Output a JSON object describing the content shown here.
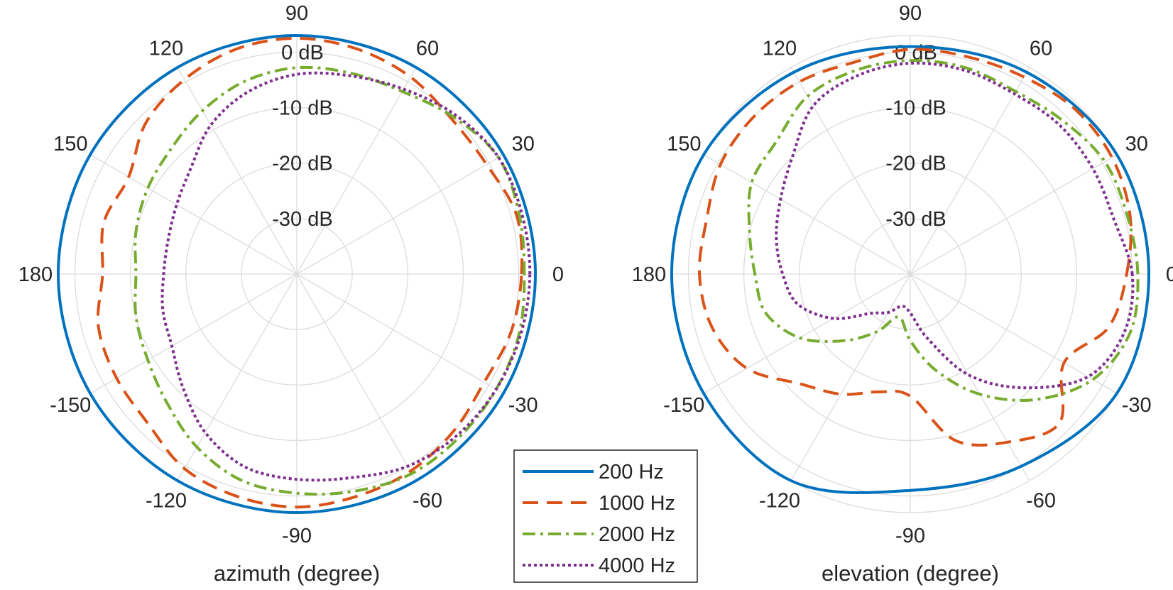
{
  "chart_data": [
    {
      "type": "polar-line",
      "name": "azimuth",
      "xlabel": "azimuth (degree)",
      "angle_unit": "degree",
      "angle_ticks": [
        0,
        30,
        60,
        90,
        120,
        150,
        180,
        -150,
        -120,
        -90,
        -60,
        -30
      ],
      "rlim_db": [
        -40,
        3
      ],
      "r_ticks": [
        {
          "value": 0,
          "label": "0 dB"
        },
        {
          "value": -10,
          "label": "-10 dB"
        },
        {
          "value": -20,
          "label": "-20 dB"
        },
        {
          "value": -30,
          "label": "-30 dB"
        }
      ],
      "series": [
        {
          "name": "200 Hz",
          "color": "#0072BD",
          "style": "solid",
          "points": [
            [
              0,
              3
            ],
            [
              30,
              3
            ],
            [
              60,
              3
            ],
            [
              90,
              3
            ],
            [
              120,
              3
            ],
            [
              150,
              3
            ],
            [
              180,
              3
            ],
            [
              -150,
              3
            ],
            [
              -120,
              3
            ],
            [
              -90,
              3
            ],
            [
              -60,
              3
            ],
            [
              -30,
              3
            ],
            [
              0,
              3
            ]
          ]
        },
        {
          "name": "1000 Hz",
          "color": "#D95319",
          "style": "dashed",
          "points": [
            [
              0,
              0.5
            ],
            [
              15,
              1
            ],
            [
              30,
              -0.5
            ],
            [
              45,
              -0.5
            ],
            [
              60,
              1
            ],
            [
              75,
              2
            ],
            [
              90,
              2.5
            ],
            [
              105,
              2
            ],
            [
              120,
              0.5
            ],
            [
              135,
              -1.5
            ],
            [
              150,
              -5
            ],
            [
              165,
              -4
            ],
            [
              180,
              -5
            ],
            [
              195,
              -3
            ],
            [
              210,
              -2.5
            ],
            [
              225,
              -2
            ],
            [
              240,
              0.5
            ],
            [
              255,
              1.5
            ],
            [
              270,
              2
            ],
            [
              285,
              1.5
            ],
            [
              300,
              1
            ],
            [
              315,
              0
            ],
            [
              330,
              -1
            ],
            [
              345,
              0
            ],
            [
              360,
              0.5
            ]
          ]
        },
        {
          "name": "2000 Hz",
          "color": "#77AC30",
          "style": "dashdot",
          "points": [
            [
              0,
              1
            ],
            [
              15,
              1.5
            ],
            [
              30,
              2
            ],
            [
              45,
              0
            ],
            [
              60,
              -2
            ],
            [
              75,
              -2.5
            ],
            [
              90,
              -2.8
            ],
            [
              105,
              -4
            ],
            [
              120,
              -6
            ],
            [
              135,
              -8
            ],
            [
              150,
              -9
            ],
            [
              165,
              -10
            ],
            [
              180,
              -11
            ],
            [
              195,
              -10
            ],
            [
              210,
              -9
            ],
            [
              225,
              -7
            ],
            [
              240,
              -4
            ],
            [
              255,
              -1.5
            ],
            [
              270,
              -0.5
            ],
            [
              285,
              0.5
            ],
            [
              300,
              1.5
            ],
            [
              315,
              1.5
            ],
            [
              330,
              1.5
            ],
            [
              345,
              1.5
            ],
            [
              360,
              1
            ]
          ]
        },
        {
          "name": "4000 Hz",
          "color": "#7E2F8E",
          "style": "dotted",
          "points": [
            [
              0,
              2
            ],
            [
              15,
              2
            ],
            [
              30,
              2
            ],
            [
              45,
              0.5
            ],
            [
              60,
              -1.5
            ],
            [
              75,
              -3
            ],
            [
              90,
              -4
            ],
            [
              105,
              -6
            ],
            [
              120,
              -9
            ],
            [
              135,
              -13
            ],
            [
              150,
              -15
            ],
            [
              165,
              -16
            ],
            [
              180,
              -16
            ],
            [
              195,
              -15
            ],
            [
              210,
              -14
            ],
            [
              225,
              -11
            ],
            [
              240,
              -7
            ],
            [
              255,
              -4
            ],
            [
              270,
              -3
            ],
            [
              285,
              -2
            ],
            [
              300,
              0
            ],
            [
              315,
              1
            ],
            [
              330,
              1.5
            ],
            [
              345,
              1.8
            ],
            [
              360,
              2
            ]
          ]
        }
      ]
    },
    {
      "type": "polar-line",
      "name": "elevation",
      "xlabel": "elevation (degree)",
      "angle_unit": "degree",
      "angle_ticks": [
        0,
        30,
        60,
        90,
        120,
        150,
        180,
        -150,
        -120,
        -90,
        -60,
        -30
      ],
      "rlim_db": [
        -40,
        3
      ],
      "r_ticks": [
        {
          "value": 0,
          "label": "0 dB"
        },
        {
          "value": -10,
          "label": "-10 dB"
        },
        {
          "value": -20,
          "label": "-20 dB"
        },
        {
          "value": -30,
          "label": "-30 dB"
        }
      ],
      "series": [
        {
          "name": "200 Hz",
          "color": "#0072BD",
          "style": "solid",
          "points": [
            [
              0,
              3
            ],
            [
              30,
              3
            ],
            [
              60,
              2
            ],
            [
              90,
              1
            ],
            [
              120,
              2
            ],
            [
              150,
              3
            ],
            [
              180,
              3
            ],
            [
              210,
              3
            ],
            [
              240,
              3
            ],
            [
              270,
              -1
            ],
            [
              300,
              0
            ],
            [
              330,
              3
            ],
            [
              360,
              3
            ]
          ]
        },
        {
          "name": "1000 Hz",
          "color": "#D95319",
          "style": "dashed",
          "points": [
            [
              0,
              -1
            ],
            [
              15,
              1
            ],
            [
              30,
              2
            ],
            [
              45,
              2
            ],
            [
              60,
              1
            ],
            [
              75,
              0.5
            ],
            [
              90,
              0.5
            ],
            [
              105,
              -0.5
            ],
            [
              120,
              0
            ],
            [
              135,
              0
            ],
            [
              150,
              -0.5
            ],
            [
              165,
              -2
            ],
            [
              180,
              -2
            ],
            [
              195,
              -3
            ],
            [
              210,
              -6
            ],
            [
              225,
              -12
            ],
            [
              240,
              -15
            ],
            [
              255,
              -18
            ],
            [
              270,
              -18
            ],
            [
              285,
              -9
            ],
            [
              300,
              -5
            ],
            [
              315,
              -2
            ],
            [
              330,
              -8
            ],
            [
              345,
              -3
            ],
            [
              360,
              -1
            ]
          ]
        },
        {
          "name": "2000 Hz",
          "color": "#77AC30",
          "style": "dashdot",
          "points": [
            [
              0,
              1
            ],
            [
              15,
              0.5
            ],
            [
              30,
              0.5
            ],
            [
              45,
              -1
            ],
            [
              60,
              -2
            ],
            [
              75,
              -1.5
            ],
            [
              90,
              -1.5
            ],
            [
              105,
              -2
            ],
            [
              120,
              -3
            ],
            [
              135,
              -6
            ],
            [
              150,
              -7
            ],
            [
              165,
              -10
            ],
            [
              180,
              -12
            ],
            [
              195,
              -13
            ],
            [
              210,
              -17
            ],
            [
              225,
              -23
            ],
            [
              240,
              -28
            ],
            [
              255,
              -32
            ],
            [
              270,
              -28
            ],
            [
              285,
              -22
            ],
            [
              300,
              -15
            ],
            [
              315,
              -8
            ],
            [
              330,
              -2
            ],
            [
              345,
              1
            ],
            [
              360,
              1
            ]
          ]
        },
        {
          "name": "4000 Hz",
          "color": "#7E2F8E",
          "style": "dotted",
          "points": [
            [
              0,
              0
            ],
            [
              15,
              -2
            ],
            [
              30,
              -2
            ],
            [
              45,
              -2
            ],
            [
              60,
              -2.5
            ],
            [
              75,
              -2
            ],
            [
              90,
              -2
            ],
            [
              105,
              -3
            ],
            [
              120,
              -5
            ],
            [
              135,
              -10
            ],
            [
              150,
              -13
            ],
            [
              165,
              -15
            ],
            [
              180,
              -17
            ],
            [
              195,
              -19
            ],
            [
              210,
              -24
            ],
            [
              225,
              -30
            ],
            [
              240,
              -32
            ],
            [
              255,
              -34
            ],
            [
              270,
              -33
            ],
            [
              285,
              -28
            ],
            [
              300,
              -19
            ],
            [
              315,
              -11
            ],
            [
              330,
              -3
            ],
            [
              345,
              0
            ],
            [
              360,
              0
            ]
          ]
        }
      ]
    }
  ],
  "legend": {
    "entries": [
      {
        "label": "200 Hz",
        "color": "#0072BD",
        "style": "solid"
      },
      {
        "label": "1000 Hz",
        "color": "#D95319",
        "style": "dashed"
      },
      {
        "label": "2000 Hz",
        "color": "#77AC30",
        "style": "dashdot"
      },
      {
        "label": "4000 Hz",
        "color": "#7E2F8E",
        "style": "dotted"
      }
    ]
  }
}
